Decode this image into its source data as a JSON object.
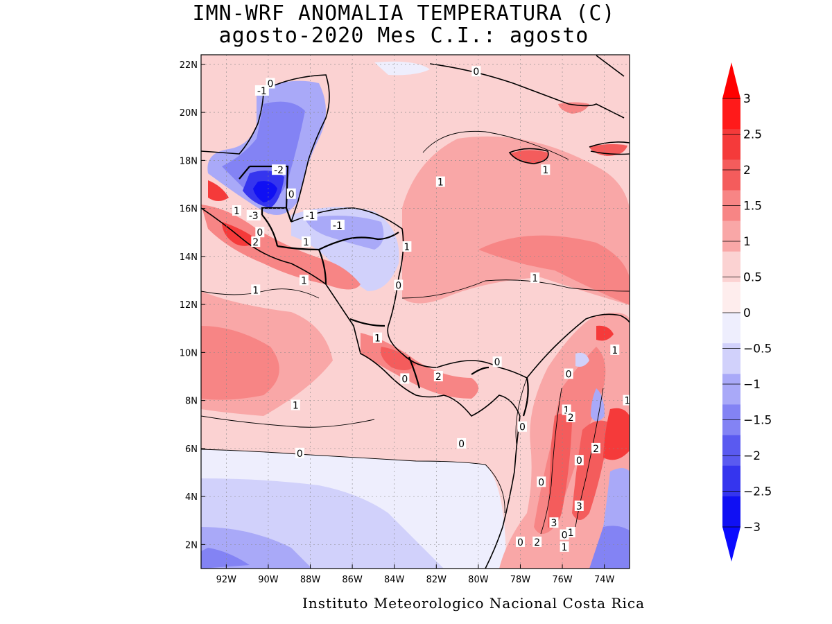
{
  "title": {
    "line1": "IMN-WRF  ANOMALIA TEMPERATURA (C)",
    "line2": "agosto-2020 Mes C.I.: agosto"
  },
  "footer": "Instituto Meteorologico Nacional Costa Rica",
  "map": {
    "lat_labels": [
      "22N",
      "20N",
      "18N",
      "16N",
      "14N",
      "12N",
      "10N",
      "8N",
      "6N",
      "4N",
      "2N"
    ],
    "lat_values": [
      22,
      20,
      18,
      16,
      14,
      12,
      10,
      8,
      6,
      4,
      2
    ],
    "lon_labels": [
      "92W",
      "90W",
      "88W",
      "86W",
      "84W",
      "82W",
      "80W",
      "78W",
      "76W",
      "74W"
    ],
    "lon_values": [
      -92,
      -90,
      -88,
      -86,
      -84,
      -82,
      -80,
      -78,
      -76,
      -74
    ],
    "lon_range": [
      -93.2,
      -72.8
    ],
    "lat_range": [
      1.0,
      22.4
    ],
    "contour_labels": [
      {
        "text": "0",
        "lon": -89.9,
        "lat": 21.2
      },
      {
        "text": "-1",
        "lon": -90.3,
        "lat": 20.9
      },
      {
        "text": "-2",
        "lon": -89.5,
        "lat": 17.6
      },
      {
        "text": "0",
        "lon": -88.9,
        "lat": 16.6
      },
      {
        "text": "1",
        "lon": -91.5,
        "lat": 15.9
      },
      {
        "text": "-3",
        "lon": -90.7,
        "lat": 15.7
      },
      {
        "text": "0",
        "lon": -90.4,
        "lat": 15.0
      },
      {
        "text": "2",
        "lon": -90.6,
        "lat": 14.6
      },
      {
        "text": "1",
        "lon": -88.2,
        "lat": 14.6
      },
      {
        "text": "-1",
        "lon": -88.0,
        "lat": 15.7
      },
      {
        "text": "-1",
        "lon": -86.7,
        "lat": 15.3
      },
      {
        "text": "1",
        "lon": -83.4,
        "lat": 14.4
      },
      {
        "text": "1",
        "lon": -88.3,
        "lat": 13.0
      },
      {
        "text": "1",
        "lon": -90.6,
        "lat": 12.6
      },
      {
        "text": "0",
        "lon": -83.8,
        "lat": 12.8
      },
      {
        "text": "1",
        "lon": -84.8,
        "lat": 10.6
      },
      {
        "text": "0",
        "lon": -83.5,
        "lat": 8.9
      },
      {
        "text": "2",
        "lon": -81.9,
        "lat": 9.0
      },
      {
        "text": "0",
        "lon": -79.1,
        "lat": 9.6
      },
      {
        "text": "1",
        "lon": -81.8,
        "lat": 17.1
      },
      {
        "text": "1",
        "lon": -76.8,
        "lat": 17.6
      },
      {
        "text": "1",
        "lon": -77.3,
        "lat": 13.1
      },
      {
        "text": "1",
        "lon": -88.7,
        "lat": 7.8
      },
      {
        "text": "0",
        "lon": -88.5,
        "lat": 5.8
      },
      {
        "text": "0",
        "lon": -80.8,
        "lat": 6.2
      },
      {
        "text": "0",
        "lon": -77.9,
        "lat": 6.9
      },
      {
        "text": "1",
        "lon": -73.5,
        "lat": 10.1
      },
      {
        "text": "0",
        "lon": -75.7,
        "lat": 9.1
      },
      {
        "text": "1",
        "lon": -72.9,
        "lat": 8.0
      },
      {
        "text": "1",
        "lon": -75.8,
        "lat": 7.6
      },
      {
        "text": "2",
        "lon": -75.6,
        "lat": 7.3
      },
      {
        "text": "2",
        "lon": -74.4,
        "lat": 6.0
      },
      {
        "text": "0",
        "lon": -75.2,
        "lat": 5.5
      },
      {
        "text": "0",
        "lon": -77.0,
        "lat": 4.6
      },
      {
        "text": "3",
        "lon": -75.2,
        "lat": 3.6
      },
      {
        "text": "3",
        "lon": -76.4,
        "lat": 2.9
      },
      {
        "text": "1",
        "lon": -75.6,
        "lat": 2.5
      },
      {
        "text": "0",
        "lon": -75.9,
        "lat": 2.4
      },
      {
        "text": "2",
        "lon": -77.2,
        "lat": 2.1
      },
      {
        "text": "0",
        "lon": -78.0,
        "lat": 2.1
      },
      {
        "text": "1",
        "lon": -75.9,
        "lat": 1.9
      },
      {
        "text": "0",
        "lon": -80.1,
        "lat": 21.7
      }
    ]
  },
  "colorbar": {
    "labels": [
      "3",
      "2.5",
      "2",
      "1.5",
      "1",
      "0.5",
      "0",
      "−0.5",
      "−1",
      "−1.5",
      "−2",
      "−2.5",
      "−3"
    ],
    "colors": [
      "#ff1a1a",
      "#f53a3a",
      "#f45c5c",
      "#f78585",
      "#f9a7a7",
      "#fbd2d2",
      "#feeded",
      "#eeeefd",
      "#d1d1fb",
      "#a9a9f8",
      "#8383f4",
      "#5a5af0",
      "#3535ee",
      "#1010f3"
    ],
    "overflow_colors": {
      "high": "#ff0000",
      "low": "#0a0aff"
    }
  }
}
